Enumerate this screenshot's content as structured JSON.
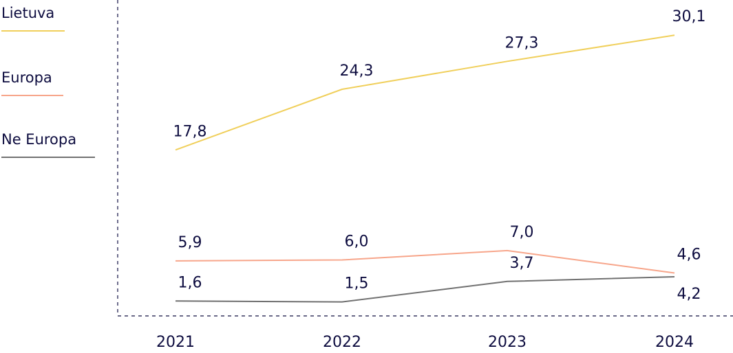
{
  "chart_data": {
    "type": "line",
    "title": "",
    "xlabel": "",
    "ylabel": "",
    "categories": [
      "2021",
      "2022",
      "2023",
      "2024"
    ],
    "ylim": [
      0,
      32
    ],
    "grid": false,
    "legend_position": "top-left",
    "series": [
      {
        "name": "Lietuva",
        "color": "#f0cf5a",
        "values": [
          17.8,
          24.3,
          27.3,
          30.1
        ],
        "labels": [
          "17,8",
          "24,3",
          "27,3",
          "30,1"
        ],
        "label_pos": [
          "above",
          "above",
          "above",
          "above"
        ]
      },
      {
        "name": "Europa",
        "color": "#f7a58a",
        "values": [
          5.9,
          6.0,
          7.0,
          4.6
        ],
        "labels": [
          "5,9",
          "6,0",
          "7,0",
          "4,6"
        ],
        "label_pos": [
          "above",
          "above",
          "above",
          "above"
        ]
      },
      {
        "name": "Ne Europa",
        "color": "#707070",
        "values": [
          1.6,
          1.5,
          3.7,
          4.2
        ],
        "labels": [
          "1,6",
          "1,5",
          "3,7",
          "4,2"
        ],
        "label_pos": [
          "above",
          "above",
          "above",
          "below"
        ]
      }
    ]
  }
}
